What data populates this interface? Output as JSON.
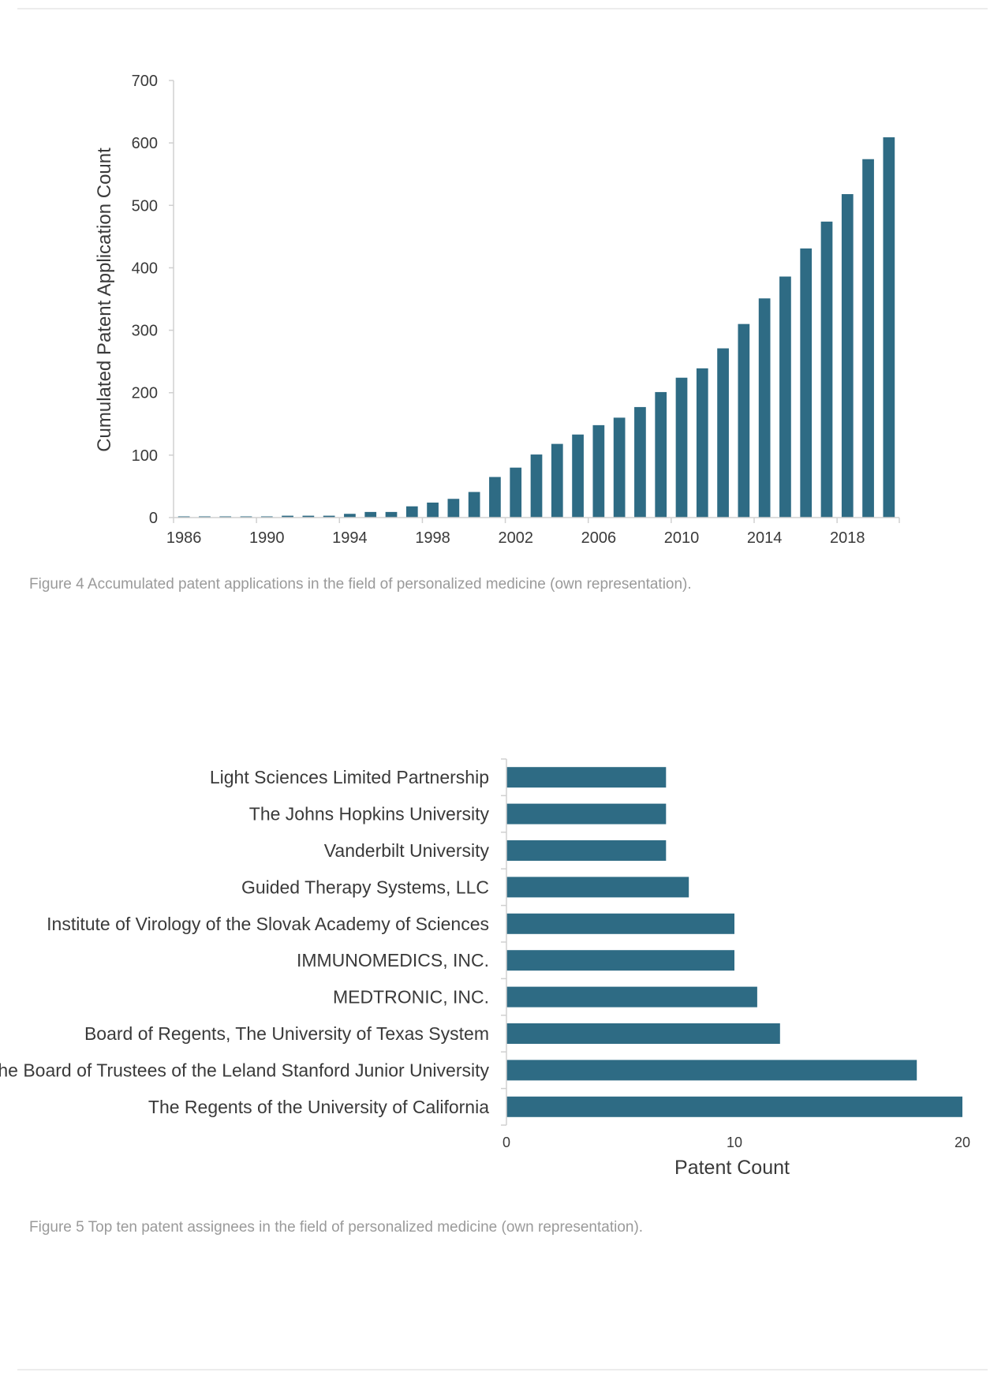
{
  "figures": {
    "fig4_caption": "Figure 4 Accumulated patent applications in the field of personalized medicine (own representation).",
    "fig5_caption": "Figure 5 Top ten patent assignees in the field of personalized medicine (own representation)."
  },
  "colors": {
    "bar": "#2e6b84",
    "axis": "#d0d0d0",
    "caption": "#9a9a9a"
  },
  "chart_data": [
    {
      "type": "bar",
      "title": "",
      "xlabel": "",
      "ylabel": "Cumulated Patent Application Count",
      "x": [
        1986,
        1987,
        1988,
        1989,
        1990,
        1991,
        1992,
        1993,
        1994,
        1995,
        1996,
        1997,
        1998,
        1999,
        2000,
        2001,
        2002,
        2003,
        2004,
        2005,
        2006,
        2007,
        2008,
        2009,
        2010,
        2011,
        2012,
        2013,
        2014,
        2015,
        2016,
        2017,
        2018,
        2019,
        2020
      ],
      "values": [
        1,
        1,
        1,
        1,
        1,
        3,
        3,
        3,
        6,
        9,
        9,
        18,
        24,
        30,
        41,
        65,
        80,
        101,
        118,
        133,
        148,
        160,
        177,
        201,
        224,
        239,
        271,
        310,
        351,
        386,
        431,
        474,
        518,
        574,
        609
      ],
      "xtick_labels": [
        "1986",
        "1990",
        "1994",
        "1998",
        "2002",
        "2006",
        "2010",
        "2014",
        "2018"
      ],
      "ytick_labels": [
        "0",
        "100",
        "200",
        "300",
        "400",
        "500",
        "600",
        "700"
      ],
      "ylim": [
        0,
        700
      ],
      "grid": false,
      "legend": "none"
    },
    {
      "type": "bar",
      "orientation": "horizontal",
      "title": "",
      "xlabel": "Patent Count",
      "ylabel": "",
      "categories": [
        "Light Sciences Limited Partnership",
        "The Johns Hopkins University",
        "Vanderbilt University",
        "Guided Therapy Systems, LLC",
        "Institute of Virology of the Slovak Academy of Sciences",
        "IMMUNOMEDICS, INC.",
        "MEDTRONIC, INC.",
        "Board of Regents, The University of Texas System",
        "The Board of Trustees of the Leland Stanford Junior University",
        "The Regents of the University of California"
      ],
      "values": [
        7,
        7,
        7,
        8,
        10,
        10,
        11,
        12,
        18,
        20
      ],
      "xtick_labels": [
        "0",
        "10",
        "20"
      ],
      "xlim": [
        0,
        20
      ],
      "grid": false,
      "legend": "none"
    }
  ]
}
